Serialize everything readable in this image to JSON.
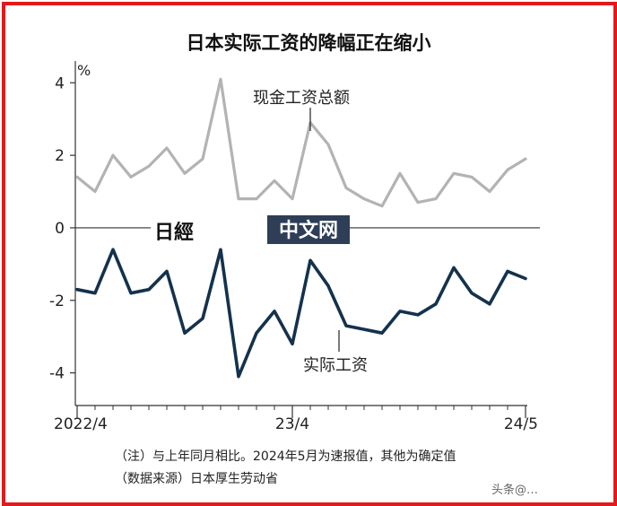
{
  "chart_data": {
    "type": "line",
    "title": "日本实际工资的降幅正在缩小",
    "unit_label": "%",
    "ylim": [
      -4.9,
      4.6
    ],
    "yticks": [
      4,
      2,
      0,
      -2,
      -4
    ],
    "ytick_labels": [
      "4",
      "2",
      "0",
      "-2",
      "-4"
    ],
    "x_count": 26,
    "xticks": [
      {
        "index": 0,
        "label": "2022/4"
      },
      {
        "index": 12,
        "label": "23/4"
      },
      {
        "index": 25,
        "label": "24/5"
      }
    ],
    "series": [
      {
        "name": "现金工资总额",
        "color": "#b3b3b3",
        "values": [
          1.4,
          1.0,
          2.0,
          1.4,
          1.7,
          2.2,
          1.5,
          1.9,
          4.1,
          0.8,
          0.8,
          1.3,
          0.8,
          2.9,
          2.3,
          1.1,
          0.8,
          0.6,
          1.5,
          0.7,
          0.8,
          1.5,
          1.4,
          1.0,
          1.6,
          1.9
        ]
      },
      {
        "name": "实际工资",
        "color": "#14324d",
        "values": [
          -1.7,
          -1.8,
          -0.6,
          -1.8,
          -1.7,
          -1.2,
          -2.9,
          -2.5,
          -0.6,
          -4.1,
          -2.9,
          -2.3,
          -3.2,
          -0.9,
          -1.6,
          -2.7,
          -2.8,
          -2.9,
          -2.3,
          -2.4,
          -2.1,
          -1.1,
          -1.8,
          -2.1,
          -1.2,
          -1.4
        ]
      }
    ],
    "grid": false,
    "legend": "inline labels"
  },
  "notes": {
    "line1": "（注）与上年同月相比。2024年5月为速报值，其他为确定值",
    "line2": "（数据来源）日本厚生劳动省"
  },
  "logo": {
    "jp": "日經",
    "cn": "中文网"
  },
  "watermark": "头条@…"
}
